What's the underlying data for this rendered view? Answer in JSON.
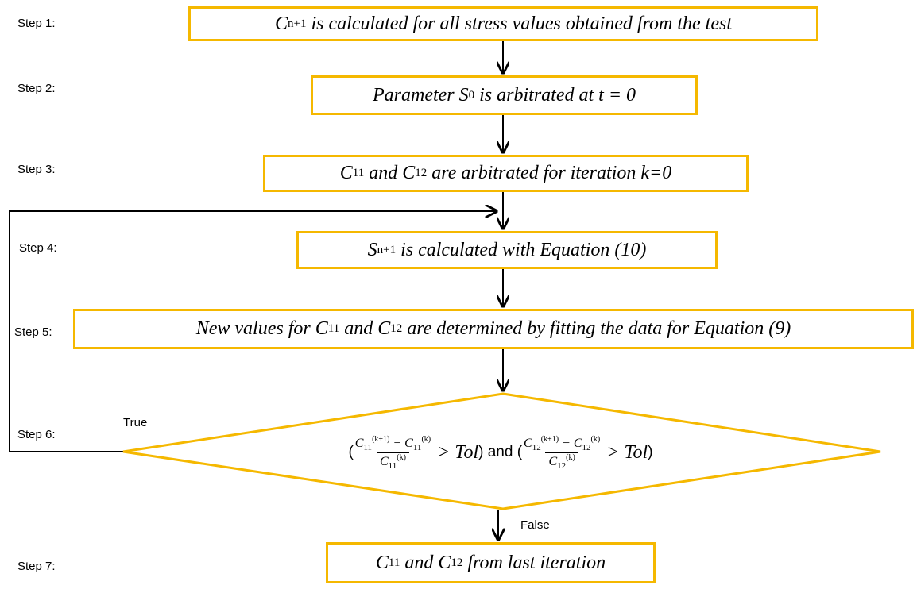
{
  "nodes": [
    {
      "step": "Step 1:",
      "text": [
        {
          "math": "C"
        },
        {
          "sub": "n+1"
        },
        {
          "math": " is calculated for all stress values obtained from the test"
        }
      ]
    },
    {
      "step": "Step 2:",
      "text": [
        {
          "math": "Parameter S"
        },
        {
          "sub": "0"
        },
        {
          "math": " is arbitrated at t = 0"
        }
      ]
    },
    {
      "step": "Step 3:",
      "text": [
        {
          "math": "C"
        },
        {
          "sub": "11"
        },
        {
          "math": " and C"
        },
        {
          "sub": "12"
        },
        {
          "math": " are arbitrated for iteration k=0"
        }
      ]
    },
    {
      "step": "Step 4:",
      "text": [
        {
          "math": "S"
        },
        {
          "sub": "n+1"
        },
        {
          "math": " is calculated with Equation (10)"
        }
      ]
    },
    {
      "step": "Step 5:",
      "text": [
        {
          "math": "New values for C"
        },
        {
          "sub": "11"
        },
        {
          "math": " and C"
        },
        {
          "sub": "12"
        },
        {
          "math": " are determined by fitting the data for Equation (9)"
        }
      ]
    },
    {
      "step": "Step 6:",
      "text": [
        {
          "plain": "("
        },
        {
          "frac": {
            "num": [
              {
                "math": "C"
              },
              {
                "sub": "11"
              },
              {
                "sup": "(k+1)"
              },
              {
                "math": " − C"
              },
              {
                "sub": "11"
              },
              {
                "sup": "(k)"
              }
            ],
            "den": [
              {
                "math": "C"
              },
              {
                "sub": "11"
              },
              {
                "sup": "(k)"
              }
            ]
          }
        },
        {
          "math": " > Tol"
        },
        {
          "plain": ") and ("
        },
        {
          "frac": {
            "num": [
              {
                "math": "C"
              },
              {
                "sub": "12"
              },
              {
                "sup": "(k+1)"
              },
              {
                "math": " − C"
              },
              {
                "sub": "12"
              },
              {
                "sup": "(k)"
              }
            ],
            "den": [
              {
                "math": "C"
              },
              {
                "sub": "12"
              },
              {
                "sup": "(k)"
              }
            ]
          }
        },
        {
          "math": " > Tol"
        },
        {
          "plain": ")"
        }
      ]
    },
    {
      "step": "Step 7:",
      "text": [
        {
          "math": "C"
        },
        {
          "sub": "11"
        },
        {
          "math": " and C"
        },
        {
          "sub": "12"
        },
        {
          "math": " from last iteration"
        }
      ]
    }
  ],
  "edges": {
    "true_label": "True",
    "false_label": "False"
  }
}
